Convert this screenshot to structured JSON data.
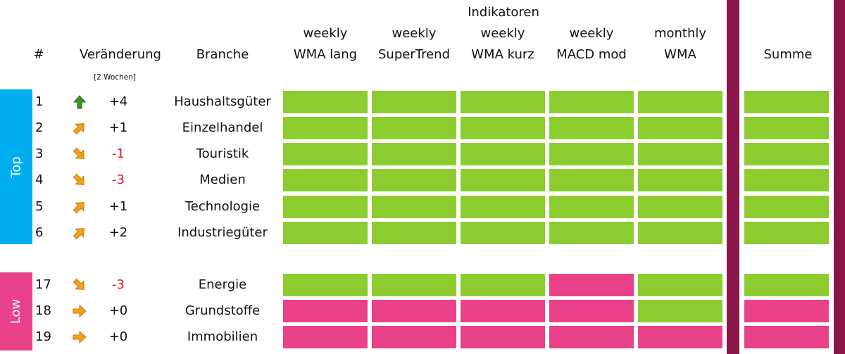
{
  "colors": {
    "green": "#8dcc2f",
    "pink": "#e8418a",
    "blue": "#00aeef",
    "maroon": "#8a1548",
    "red": "#e8141b",
    "orange": "#f2a11d",
    "arrow_green": "#3f8f2a"
  },
  "header": {
    "indikatoren": "Indikatoren",
    "hash": "#",
    "veraenderung": "Veränderung",
    "veraenderung_sub": "[2 Wochen]",
    "branche": "Branche",
    "summe": "Summe",
    "columns": [
      {
        "line1": "weekly",
        "line2": "WMA lang"
      },
      {
        "line1": "weekly",
        "line2": "SuperTrend"
      },
      {
        "line1": "weekly",
        "line2": "WMA kurz"
      },
      {
        "line1": "weekly",
        "line2": "MACD mod"
      },
      {
        "line1": "monthly",
        "line2": "WMA"
      }
    ]
  },
  "groups": {
    "top_label": "Top",
    "low_label": "Low"
  },
  "rows": [
    {
      "rank": "1",
      "arrow": "up-icon",
      "delta": "+4",
      "delta_color": "black",
      "branche": "Haushaltsgüter",
      "signals": [
        "green",
        "green",
        "green",
        "green",
        "green"
      ],
      "summe": "green"
    },
    {
      "rank": "2",
      "arrow": "up-right-icon",
      "delta": "+1",
      "delta_color": "black",
      "branche": "Einzelhandel",
      "signals": [
        "green",
        "green",
        "green",
        "green",
        "green"
      ],
      "summe": "green"
    },
    {
      "rank": "3",
      "arrow": "down-right-icon",
      "delta": "-1",
      "delta_color": "red",
      "branche": "Touristik",
      "signals": [
        "green",
        "green",
        "green",
        "green",
        "green"
      ],
      "summe": "green"
    },
    {
      "rank": "4",
      "arrow": "down-right-icon",
      "delta": "-3",
      "delta_color": "red",
      "branche": "Medien",
      "signals": [
        "green",
        "green",
        "green",
        "green",
        "green"
      ],
      "summe": "green"
    },
    {
      "rank": "5",
      "arrow": "up-right-icon",
      "delta": "+1",
      "delta_color": "black",
      "branche": "Technologie",
      "signals": [
        "green",
        "green",
        "green",
        "green",
        "green"
      ],
      "summe": "green"
    },
    {
      "rank": "6",
      "arrow": "up-right-icon",
      "delta": "+2",
      "delta_color": "black",
      "branche": "Industriegüter",
      "signals": [
        "green",
        "green",
        "green",
        "green",
        "green"
      ],
      "summe": "green"
    },
    {
      "rank": "17",
      "arrow": "down-right-icon",
      "delta": "-3",
      "delta_color": "red",
      "branche": "Energie",
      "signals": [
        "green",
        "green",
        "green",
        "pink",
        "green"
      ],
      "summe": "green"
    },
    {
      "rank": "18",
      "arrow": "right-icon",
      "delta": "+0",
      "delta_color": "black",
      "branche": "Grundstoffe",
      "signals": [
        "pink",
        "pink",
        "pink",
        "pink",
        "green"
      ],
      "summe": "pink"
    },
    {
      "rank": "19",
      "arrow": "right-icon",
      "delta": "+0",
      "delta_color": "black",
      "branche": "Immobilien",
      "signals": [
        "pink",
        "pink",
        "pink",
        "pink",
        "pink"
      ],
      "summe": "pink"
    }
  ]
}
